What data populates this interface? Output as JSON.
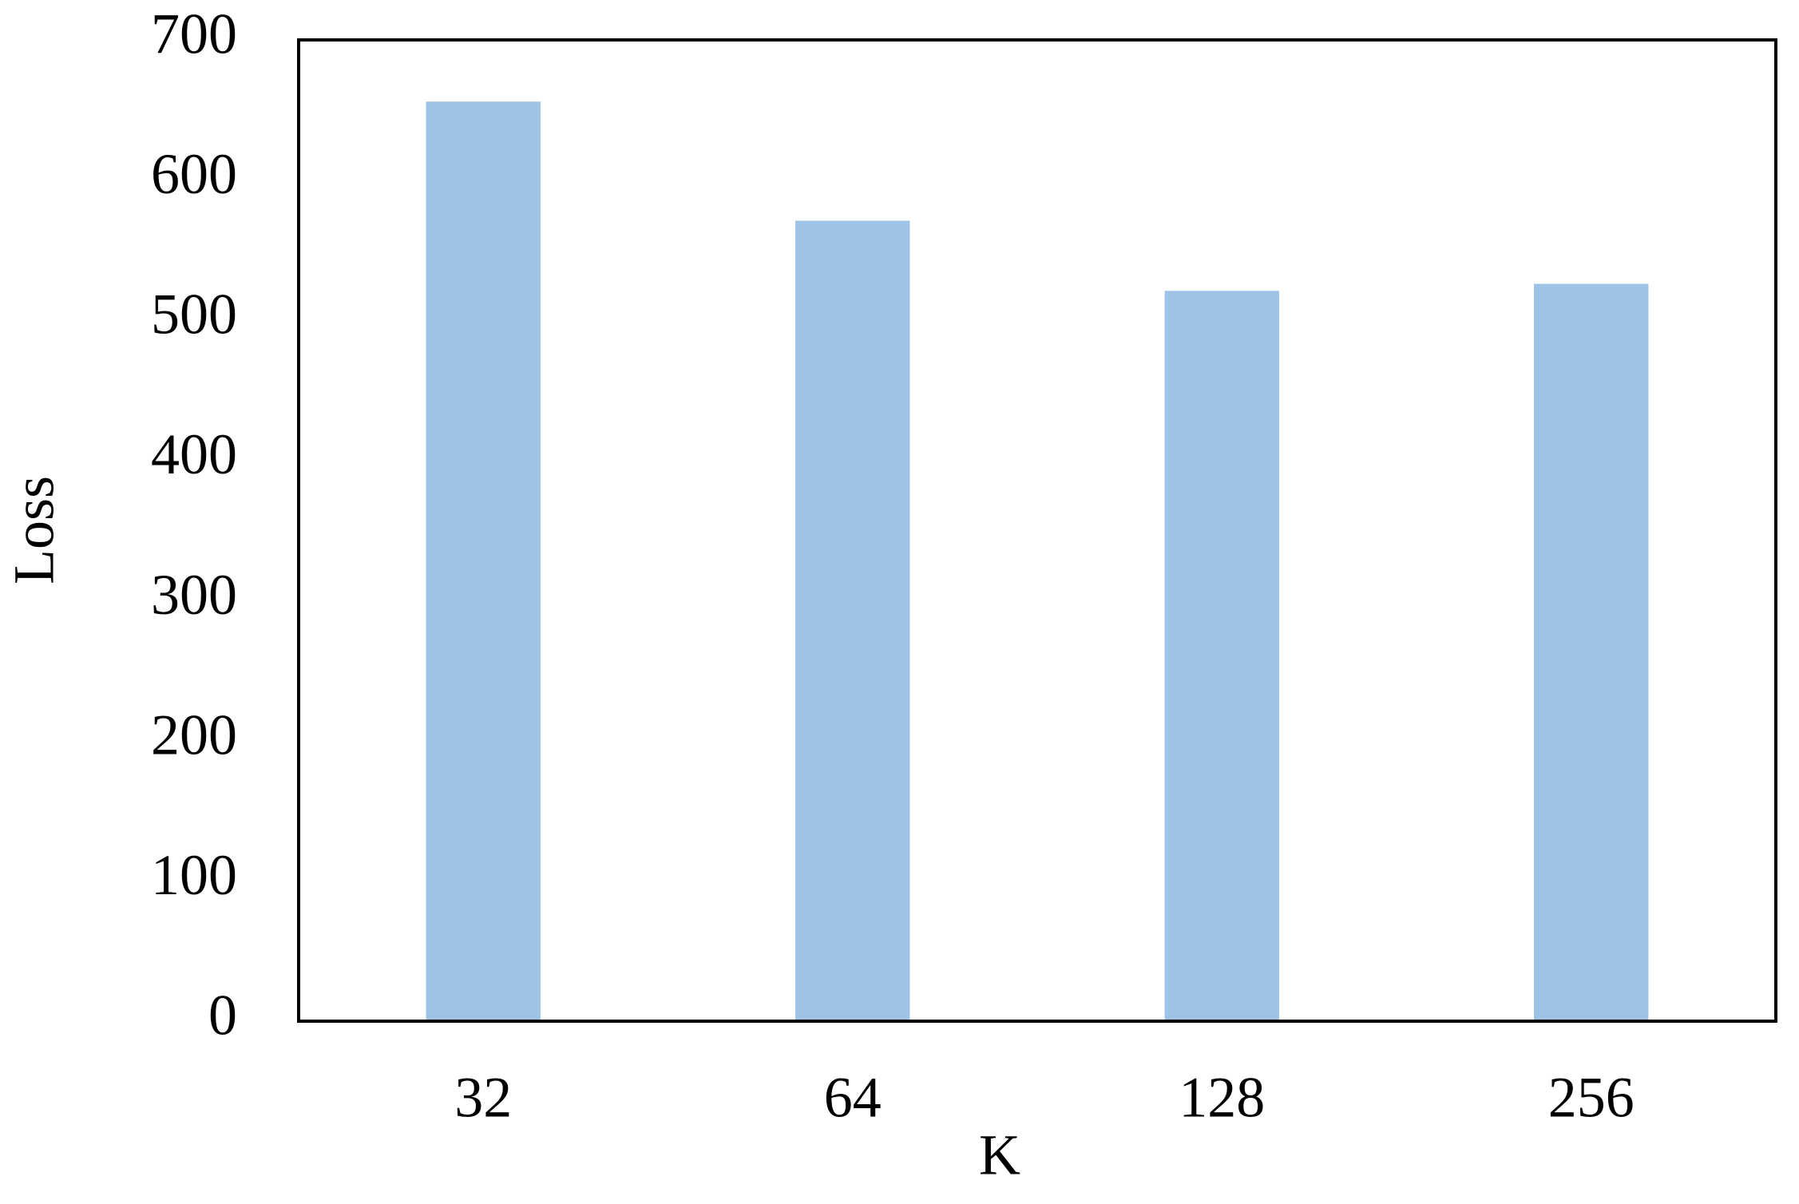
{
  "chart_data": {
    "type": "bar",
    "x_label": "K",
    "y_label": "Loss",
    "categories": [
      "32",
      "64",
      "128",
      "256"
    ],
    "values": [
      656,
      571,
      521,
      526
    ],
    "color": "#9dc3e6",
    "ylim": [
      0,
      700
    ],
    "yticks": [
      0,
      100,
      200,
      300,
      400,
      500,
      600,
      700
    ],
    "grid": false
  }
}
